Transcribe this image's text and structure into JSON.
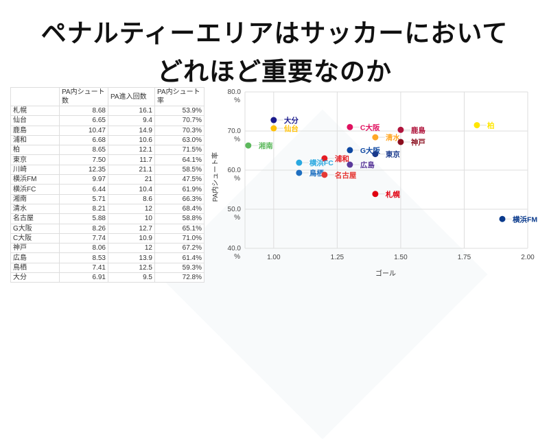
{
  "title_lines": [
    "ペナルティーエリアはサッカーにおいて",
    "どれほど重要なのか"
  ],
  "table": {
    "headers": [
      "",
      "PA内シュート数",
      "PA進入回数",
      "PA内シュート率"
    ],
    "rows": [
      [
        "札幌",
        "8.68",
        "16.1",
        "53.9%"
      ],
      [
        "仙台",
        "6.65",
        "9.4",
        "70.7%"
      ],
      [
        "鹿島",
        "10.47",
        "14.9",
        "70.3%"
      ],
      [
        "浦和",
        "6.68",
        "10.6",
        "63.0%"
      ],
      [
        "柏",
        "8.65",
        "12.1",
        "71.5%"
      ],
      [
        "東京",
        "7.50",
        "11.7",
        "64.1%"
      ],
      [
        "川崎",
        "12.35",
        "21.1",
        "58.5%"
      ],
      [
        "横浜FM",
        "9.97",
        "21",
        "47.5%"
      ],
      [
        "横浜FC",
        "6.44",
        "10.4",
        "61.9%"
      ],
      [
        "湘南",
        "5.71",
        "8.6",
        "66.3%"
      ],
      [
        "清水",
        "8.21",
        "12",
        "68.4%"
      ],
      [
        "名古屋",
        "5.88",
        "10",
        "58.8%"
      ],
      [
        "G大阪",
        "8.26",
        "12.7",
        "65.1%"
      ],
      [
        "C大阪",
        "7.74",
        "10.9",
        "71.0%"
      ],
      [
        "神戸",
        "8.06",
        "12",
        "67.2%"
      ],
      [
        "広島",
        "8.53",
        "13.9",
        "61.4%"
      ],
      [
        "鳥栖",
        "7.41",
        "12.5",
        "59.3%"
      ],
      [
        "大分",
        "6.91",
        "9.5",
        "72.8%"
      ]
    ]
  },
  "chart_data": {
    "type": "scatter",
    "xlabel": "ゴール",
    "ylabel": "PA内シュート率",
    "xlim": [
      0.887,
      2.0
    ],
    "ylim": [
      40,
      80
    ],
    "xticks": [
      "1.00",
      "1.25",
      "1.50",
      "1.75",
      "2.00"
    ],
    "yticks": [
      "40.0 %",
      "50.0 %",
      "60.0 %",
      "70.0 %",
      "80.0 %"
    ],
    "grid": true,
    "points": [
      {
        "label": "大分",
        "x": 1.0,
        "y": 72.8,
        "color": "#1a1a8c"
      },
      {
        "label": "仙台",
        "x": 1.0,
        "y": 70.7,
        "color": "#ffc107"
      },
      {
        "label": "湘南",
        "x": 0.9,
        "y": 66.3,
        "color": "#5cb85c"
      },
      {
        "label": "C大阪",
        "x": 1.3,
        "y": 71.0,
        "color": "#e0115f"
      },
      {
        "label": "鹿島",
        "x": 1.5,
        "y": 70.3,
        "color": "#b0143c"
      },
      {
        "label": "清水",
        "x": 1.4,
        "y": 68.4,
        "color": "#ffa726"
      },
      {
        "label": "神戸",
        "x": 1.5,
        "y": 67.2,
        "color": "#8b0e1e"
      },
      {
        "label": "柏",
        "x": 1.8,
        "y": 71.5,
        "color": "#ffe600"
      },
      {
        "label": "G大阪",
        "x": 1.3,
        "y": 65.1,
        "color": "#0d47a1"
      },
      {
        "label": "東京",
        "x": 1.4,
        "y": 64.1,
        "color": "#1a3a8c"
      },
      {
        "label": "浦和",
        "x": 1.2,
        "y": 63.0,
        "color": "#e41b23"
      },
      {
        "label": "横浜FC",
        "x": 1.1,
        "y": 61.9,
        "color": "#29a8e0"
      },
      {
        "label": "広島",
        "x": 1.3,
        "y": 61.4,
        "color": "#5b3a9b"
      },
      {
        "label": "鳥栖",
        "x": 1.1,
        "y": 59.3,
        "color": "#1e6fc0"
      },
      {
        "label": "名古屋",
        "x": 1.2,
        "y": 58.8,
        "color": "#e53935"
      },
      {
        "label": "札幌",
        "x": 1.4,
        "y": 53.9,
        "color": "#e00010"
      },
      {
        "label": "横浜FM",
        "x": 1.9,
        "y": 47.5,
        "color": "#0a3a8c"
      }
    ]
  }
}
